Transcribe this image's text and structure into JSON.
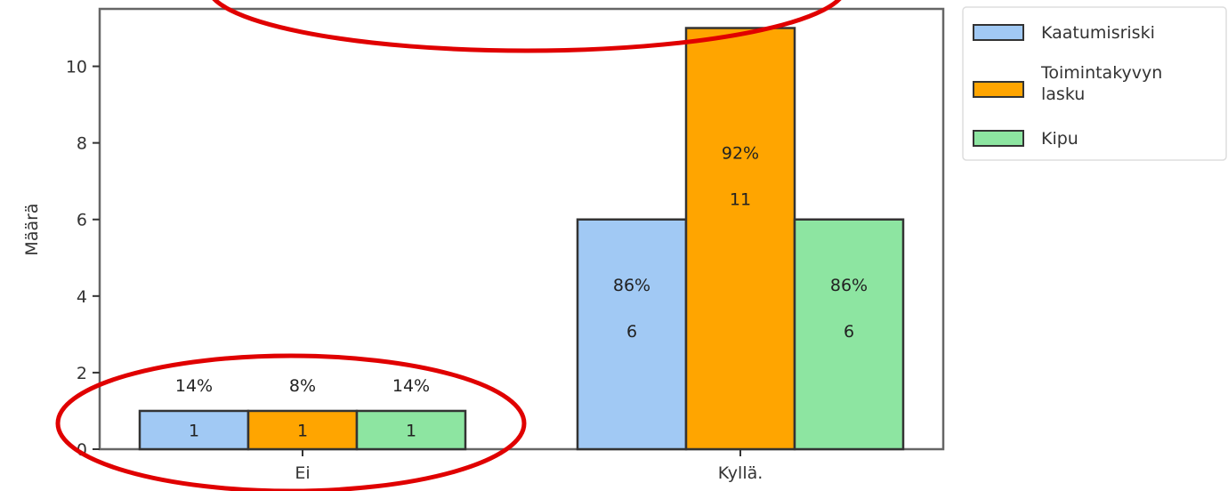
{
  "chart_data": {
    "type": "bar",
    "categories": [
      "Ei",
      "Kyllä."
    ],
    "series": [
      {
        "name": "Kaatumisriski",
        "values": [
          1,
          6
        ],
        "percent_labels": [
          "14%",
          "86%"
        ],
        "color": "#a1c9f4"
      },
      {
        "name": "Toimintakyvyn lasku",
        "values": [
          1,
          11
        ],
        "percent_labels": [
          "8%",
          "92%"
        ],
        "color": "#ffa500"
      },
      {
        "name": "Kipu",
        "values": [
          1,
          6
        ],
        "percent_labels": [
          "14%",
          "86%"
        ],
        "color": "#8de5a1"
      }
    ],
    "ylabel": "Määrä",
    "xlabel": "",
    "ylim": [
      0,
      11.5
    ],
    "yticks": [
      0,
      2,
      4,
      6,
      8,
      10
    ],
    "grid": false,
    "legend_position": "outside-top-right",
    "annotations": "red ellipses highlighting the top of the plot and the Ei group"
  }
}
